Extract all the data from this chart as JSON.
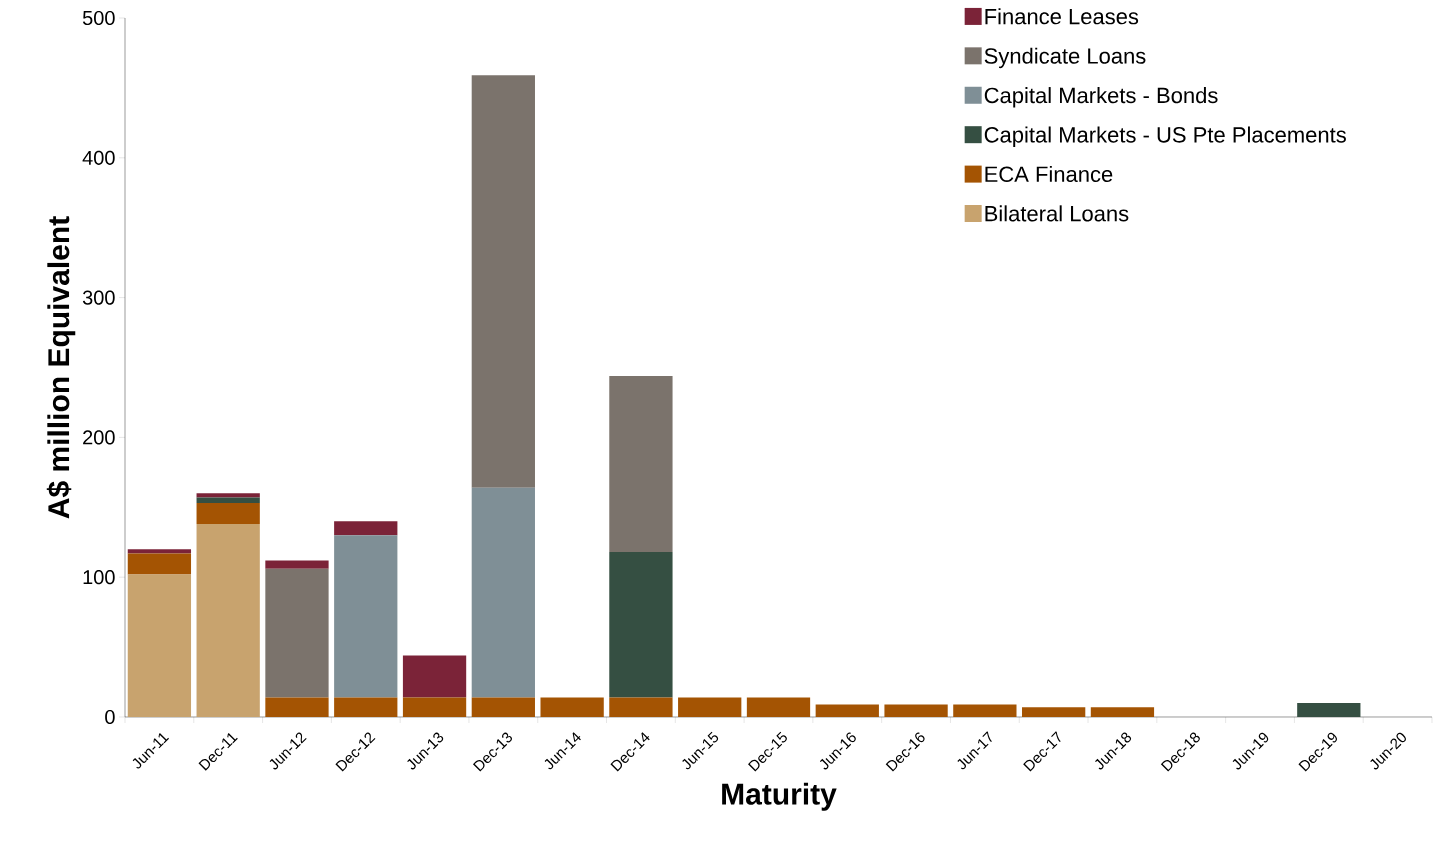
{
  "chart_data": {
    "type": "bar",
    "stacked": true,
    "xlabel": "Maturity",
    "ylabel": "A$ million Equivalent",
    "categories": [
      "Jun-11",
      "Dec-11",
      "Jun-12",
      "Dec-12",
      "Jun-13",
      "Dec-13",
      "Jun-14",
      "Dec-14",
      "Jun-15",
      "Dec-15",
      "Jun-16",
      "Dec-16",
      "Jun-17",
      "Dec-17",
      "Jun-18",
      "Dec-18",
      "Jun-19",
      "Dec-19",
      "Jun-20"
    ],
    "series": [
      {
        "name": "Bilateral Loans",
        "color": "#c8a36e",
        "values": [
          102,
          138,
          0,
          0,
          0,
          0,
          0,
          0,
          0,
          0,
          0,
          0,
          0,
          0,
          0,
          0,
          0,
          0,
          0
        ]
      },
      {
        "name": "ECA Finance",
        "color": "#a45403",
        "values": [
          15,
          15,
          14,
          14,
          14,
          14,
          14,
          14,
          14,
          14,
          9,
          9,
          9,
          7,
          7,
          0,
          0,
          0,
          0
        ]
      },
      {
        "name": "Capital Markets - US Pte Placements",
        "color": "#354f42",
        "values": [
          0,
          4,
          0,
          0,
          0,
          0,
          0,
          104,
          0,
          0,
          0,
          0,
          0,
          0,
          0,
          0,
          0,
          10,
          0
        ]
      },
      {
        "name": "Capital Markets - Bonds",
        "color": "#7f8f96",
        "values": [
          0,
          0,
          0,
          116,
          0,
          150,
          0,
          0,
          0,
          0,
          0,
          0,
          0,
          0,
          0,
          0,
          0,
          0,
          0
        ]
      },
      {
        "name": "Syndicate Loans",
        "color": "#7b736c",
        "values": [
          0,
          0,
          92,
          0,
          0,
          295,
          0,
          126,
          0,
          0,
          0,
          0,
          0,
          0,
          0,
          0,
          0,
          0,
          0
        ]
      },
      {
        "name": "Finance Leases",
        "color": "#7b2338",
        "values": [
          3,
          3,
          6,
          10,
          30,
          0,
          0,
          0,
          0,
          0,
          0,
          0,
          0,
          0,
          0,
          0,
          0,
          0,
          0
        ]
      }
    ],
    "ylim": [
      0,
      500
    ],
    "yticks": [
      0,
      100,
      200,
      300,
      400,
      500
    ],
    "grid": false,
    "legend": "top right"
  }
}
